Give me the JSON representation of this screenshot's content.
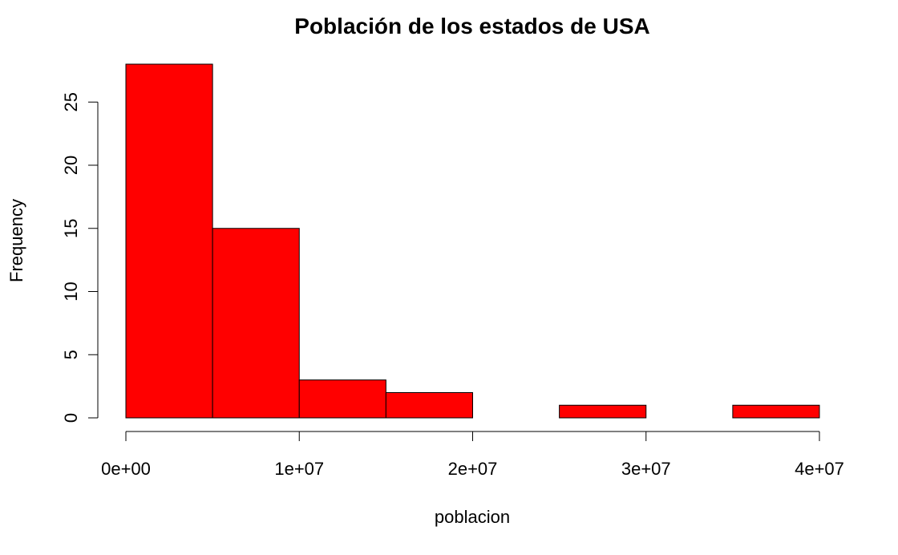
{
  "chart_data": {
    "type": "bar",
    "subtype": "histogram",
    "title": "Población de los estados de USA",
    "xlabel": "poblacion",
    "ylabel": "Frequency",
    "bins": [
      {
        "from": 0,
        "to": 5000000,
        "count": 28
      },
      {
        "from": 5000000,
        "to": 10000000,
        "count": 15
      },
      {
        "from": 10000000,
        "to": 15000000,
        "count": 3
      },
      {
        "from": 15000000,
        "to": 20000000,
        "count": 2
      },
      {
        "from": 20000000,
        "to": 25000000,
        "count": 0
      },
      {
        "from": 25000000,
        "to": 30000000,
        "count": 1
      },
      {
        "from": 30000000,
        "to": 35000000,
        "count": 0
      },
      {
        "from": 35000000,
        "to": 40000000,
        "count": 1
      }
    ],
    "xlim": [
      0,
      40000000
    ],
    "ylim": [
      0,
      28
    ],
    "xticks": [
      0,
      10000000,
      20000000,
      30000000,
      40000000
    ],
    "xtick_labels": [
      "0e+00",
      "1e+07",
      "2e+07",
      "3e+07",
      "4e+07"
    ],
    "yticks": [
      0,
      5,
      10,
      15,
      20,
      25
    ],
    "ytick_labels": [
      "0",
      "5",
      "10",
      "15",
      "20",
      "25"
    ],
    "bar_color": "#ff0000",
    "grid": false
  }
}
